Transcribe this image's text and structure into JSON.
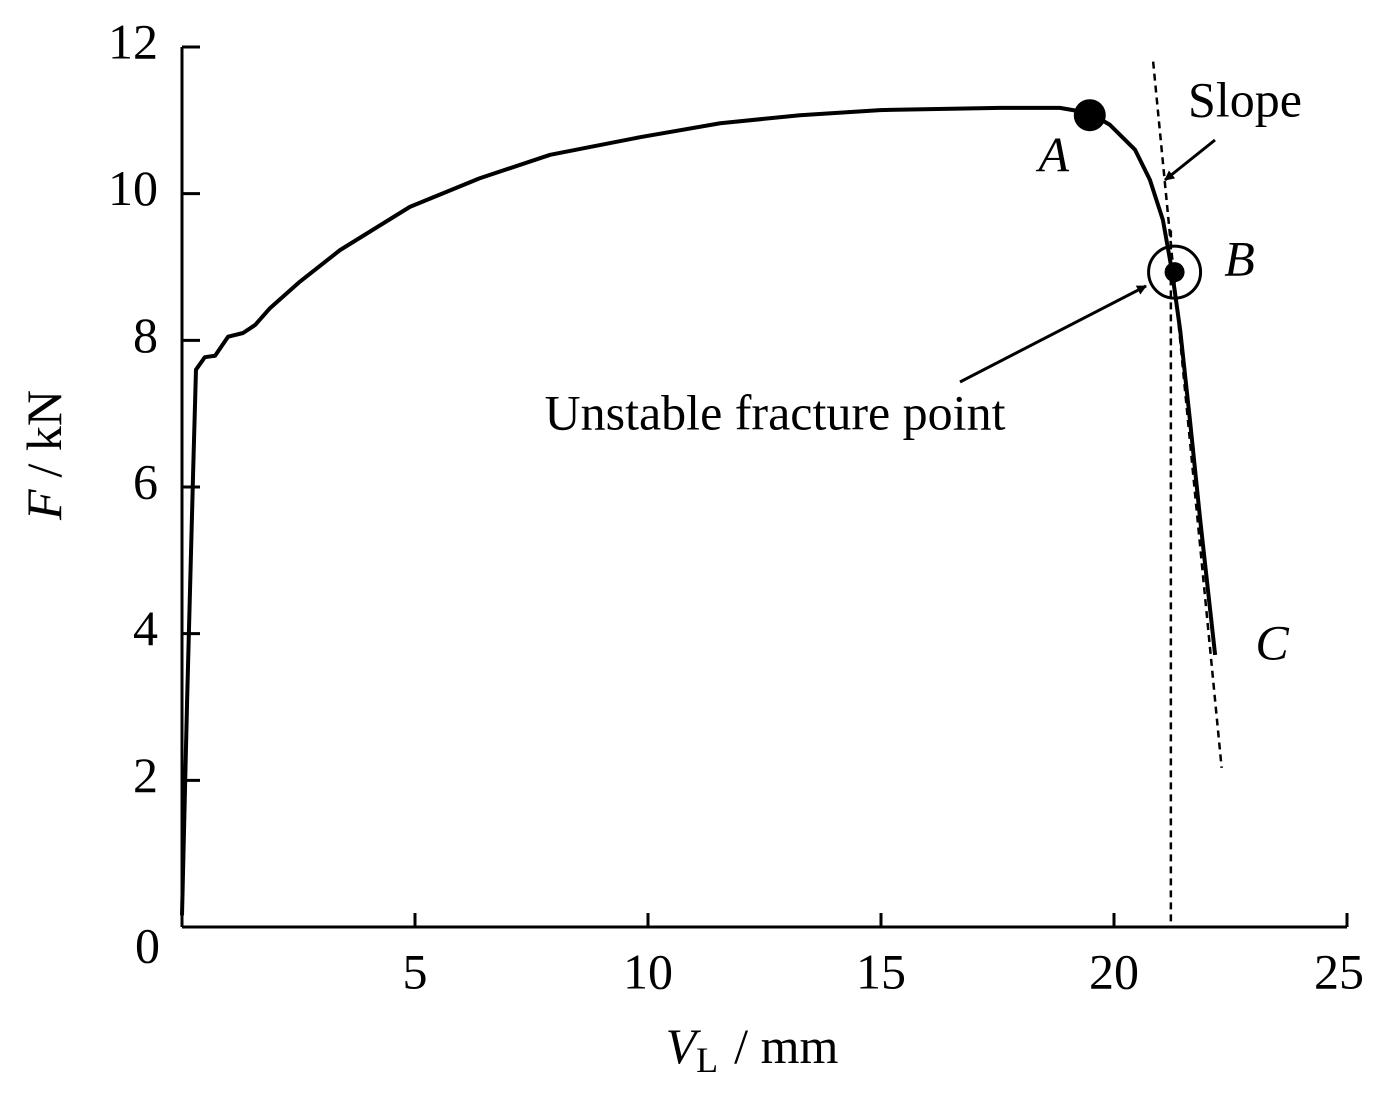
{
  "chart_data": {
    "type": "line",
    "x_label": {
      "symbol": "V",
      "subscript": "L",
      "unit": "/ mm"
    },
    "y_label": {
      "symbol": "F",
      "unit": "/ kN"
    },
    "xlim": [
      0,
      25
    ],
    "ylim": [
      0,
      12
    ],
    "xticks": [
      5,
      10,
      15,
      20,
      25
    ],
    "yticks": [
      0,
      2,
      4,
      6,
      8,
      10,
      12
    ],
    "series": [
      {
        "color": "#000000",
        "x": [
          0,
          0.11,
          0.24,
          0.3,
          0.49,
          0.71,
          0.99,
          1.31,
          1.57,
          1.89,
          2.53,
          3.39,
          4.89,
          6.39,
          7.9,
          9.83,
          11.55,
          13.26,
          14.98,
          17.55,
          18.84,
          19.48,
          19.91,
          20.45,
          20.77,
          21.05,
          21.24,
          21.42,
          21.63,
          21.85,
          22.17
        ],
        "values": [
          0.16,
          3.1,
          6.23,
          7.6,
          7.77,
          7.79,
          8.05,
          8.1,
          8.21,
          8.44,
          8.8,
          9.23,
          9.82,
          10.21,
          10.53,
          10.77,
          10.96,
          11.07,
          11.14,
          11.17,
          11.17,
          11.1,
          10.94,
          10.6,
          10.19,
          9.64,
          8.96,
          8.14,
          6.91,
          5.55,
          3.71
        ]
      }
    ],
    "points": [
      {
        "label": "A",
        "x": 19.48,
        "y": 11.07
      },
      {
        "label": "B",
        "x": 21.3,
        "y": 8.93
      }
    ],
    "end_label": "C",
    "reference_lines": [
      {
        "x": [
          20.84,
          22.31
        ],
        "y": [
          11.8,
          2.17
        ]
      },
      {
        "x": [
          21.22,
          21.22
        ],
        "y": [
          9.5,
          0
        ]
      }
    ],
    "annotations": [
      "Slope",
      "Unstable fracture point"
    ]
  }
}
